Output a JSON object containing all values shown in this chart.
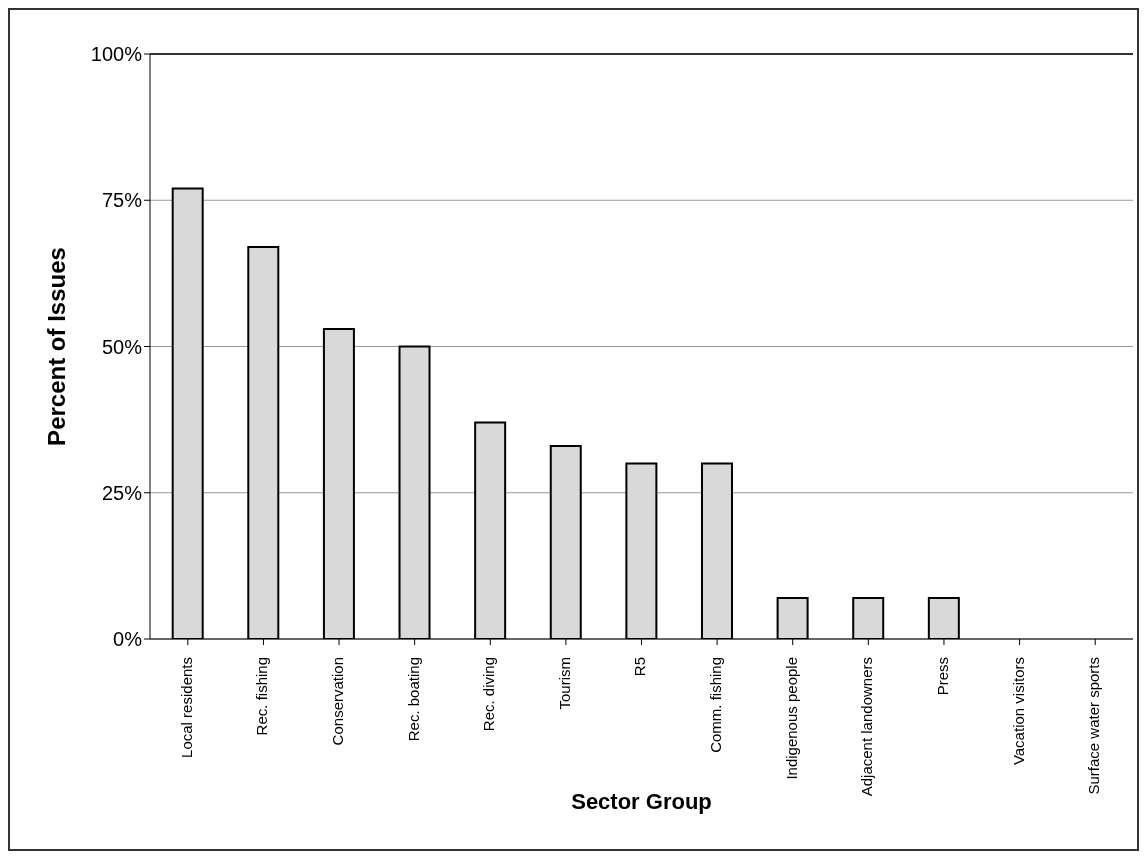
{
  "chart_data": {
    "type": "bar",
    "xlabel": "Sector Group",
    "ylabel": "Percent of Issues",
    "categories": [
      "Local residents",
      "Rec. fishing",
      "Conservation",
      "Rec. boating",
      "Rec. diving",
      "Tourism",
      "R5",
      "Comm. fishing",
      "Indigenous people",
      "Adjacent landowners",
      "Press",
      "Vacation visitors",
      "Surface water sports"
    ],
    "values": [
      77,
      67,
      53,
      50,
      37,
      33,
      30,
      30,
      7,
      7,
      7,
      0,
      0
    ],
    "color": "#d9d9d9",
    "ylim": [
      0,
      100
    ],
    "yticks": [
      {
        "value": 0,
        "label": "0%"
      },
      {
        "value": 25,
        "label": "25%"
      },
      {
        "value": 50,
        "label": "50%"
      },
      {
        "value": 75,
        "label": "75%"
      },
      {
        "value": 100,
        "label": "100%"
      }
    ],
    "grid": "y"
  }
}
